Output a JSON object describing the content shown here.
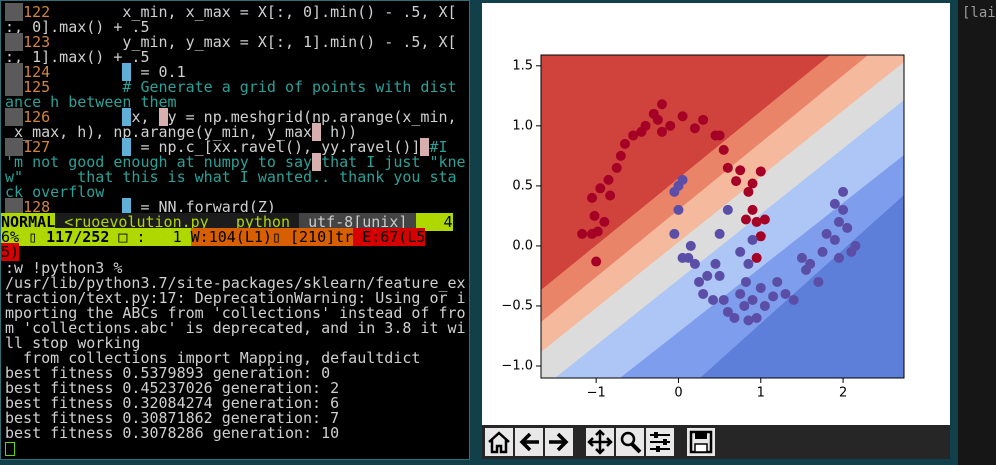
{
  "editor": {
    "rows": [
      {
        "num": "122",
        "code": [
          "        x_min, x_max = X[:, 0].min() - .5, X["
        ]
      },
      {
        "code": [
          ":, 0].max() + .5"
        ]
      },
      {
        "num": "123",
        "code": [
          "        y_min, y_max = X[:, 1].min() - .5, X["
        ]
      },
      {
        "code": [
          ":, 1].max() + .5"
        ]
      },
      {
        "num": "124",
        "code": [
          "        ",
          " = 0.1"
        ]
      },
      {
        "num": "125",
        "code": [
          "        # Generate a grid of points with dist"
        ]
      },
      {
        "code": [
          "ance h between them"
        ]
      },
      {
        "num": "126",
        "code": [
          "        ",
          "x, ",
          "y = np.meshgrid(np.arange(x_min,"
        ]
      },
      {
        "code": [
          " x_max, h), np.arange(y_min, y_max",
          " h))"
        ]
      },
      {
        "num": "127",
        "code": [
          "        ",
          " = np.c_[xx.ravel(), yy.ravel()]",
          "#I"
        ]
      },
      {
        "code": [
          "'m not good enough at numpy to say",
          "that I just \"kne"
        ]
      },
      {
        "code": [
          "w\"      that this is what I wanted.. thank you sta"
        ]
      },
      {
        "code": [
          "ck overflow"
        ]
      },
      {
        "num": "128",
        "code": [
          "        ",
          " = NN.forward(Z)"
        ]
      }
    ],
    "status": {
      "mode": "NORMAL",
      "file": "<ruoevolution.py",
      "filetype": "python",
      "encoding": "utf-8[unix]",
      "percent_a": "4",
      "percent_b": "6% ▯",
      "position": "117/252",
      "column": "□ :   1",
      "warnings": "W:104(L1)▯ [210]tr",
      "errors": "E:67(L5",
      "errors_cont": "5)"
    }
  },
  "output": {
    "lines": [
      ":w !python3 %",
      "/usr/lib/python3.7/site-packages/sklearn/feature_ex",
      "traction/text.py:17: DeprecationWarning: Using or i",
      "mporting the ABCs from 'collections' instead of fro",
      "m 'collections.abc' is deprecated, and in 3.8 it wi",
      "ll stop working",
      "  from collections import Mapping, defaultdict",
      "best fitness 0.5379893 generation: 0",
      "best fitness 0.45237026 generation: 2",
      "best fitness 0.32084274 generation: 6",
      "best fitness 0.30871862 generation: 7",
      "best fitness 0.3078286 generation: 10"
    ]
  },
  "side_window": {
    "text": "[lai"
  },
  "plot": {
    "type": "scatter",
    "xlim": [
      -1.67,
      2.74
    ],
    "ylim": [
      -1.1,
      1.59
    ],
    "xticks": [
      {
        "value": -1,
        "label": "−1"
      },
      0,
      1,
      2
    ],
    "yticks": [
      {
        "value": -1,
        "label": "−1.0"
      },
      {
        "value": -0.5,
        "label": "−0.5"
      },
      {
        "value": 0,
        "label": "0.0"
      },
      {
        "value": 0.5,
        "label": "0.5"
      },
      {
        "value": 1,
        "label": "1.0"
      },
      {
        "value": 1.5,
        "label": "1.5"
      }
    ],
    "series": [
      {
        "color": "#a50026",
        "x": [
          -1.17,
          -1.05,
          -1.02,
          -1.0,
          -0.98,
          -1.05,
          -0.95,
          -0.85,
          -0.9,
          -0.83,
          -0.75,
          -0.7,
          -0.65,
          -0.55,
          -0.45,
          -0.4,
          -0.3,
          -0.2,
          -0.25,
          -0.1,
          -0.2,
          0.05,
          0.2,
          0.3,
          0.45,
          0.55,
          0.5,
          0.6,
          0.75,
          0.7,
          0.85,
          0.9,
          0.95,
          0.82,
          1.0,
          1.05,
          0.95,
          0.9,
          1.0
        ],
        "y": [
          0.1,
          0.1,
          0.25,
          -0.13,
          0.12,
          0.4,
          0.48,
          0.55,
          0.2,
          0.42,
          0.65,
          0.75,
          0.85,
          0.92,
          0.95,
          1.0,
          1.1,
          1.18,
          1.05,
          1.0,
          0.95,
          1.08,
          0.98,
          1.05,
          0.92,
          0.8,
          0.92,
          0.65,
          0.63,
          0.54,
          0.45,
          0.3,
          0.2,
          0.22,
          0.08,
          0.22,
          -0.1,
          0.52,
          0.62
        ]
      },
      {
        "color": "#5b4ea6",
        "x": [
          0.0,
          -0.05,
          0.05,
          0.0,
          -0.05,
          0.05,
          0.15,
          0.12,
          0.2,
          0.25,
          0.3,
          0.35,
          0.42,
          0.5,
          0.45,
          0.55,
          0.6,
          0.68,
          0.75,
          0.8,
          0.85,
          0.9,
          0.95,
          0.82,
          1.0,
          1.05,
          1.15,
          1.2,
          1.3,
          1.4,
          1.5,
          1.55,
          1.6,
          1.7,
          1.75,
          1.8,
          1.9,
          1.95,
          2.0,
          2.05,
          2.1,
          2.15,
          1.95,
          2.0,
          1.9,
          0.6,
          0.85,
          0.9,
          0.5,
          0.75
        ],
        "y": [
          0.5,
          0.45,
          0.55,
          0.3,
          0.1,
          -0.1,
          0.0,
          -0.1,
          -0.15,
          -0.3,
          -0.4,
          -0.25,
          -0.45,
          -0.25,
          -0.15,
          -0.45,
          -0.55,
          -0.6,
          -0.4,
          -0.5,
          -0.62,
          -0.45,
          -0.6,
          -0.3,
          -0.35,
          -0.5,
          -0.42,
          -0.3,
          -0.4,
          -0.45,
          -0.1,
          -0.2,
          -0.15,
          -0.3,
          -0.05,
          0.1,
          0.05,
          0.2,
          0.3,
          0.15,
          -0.05,
          0.0,
          -0.1,
          0.45,
          0.35,
          0.3,
          -0.15,
          0.05,
          0.1,
          -0.05
        ]
      }
    ]
  }
}
